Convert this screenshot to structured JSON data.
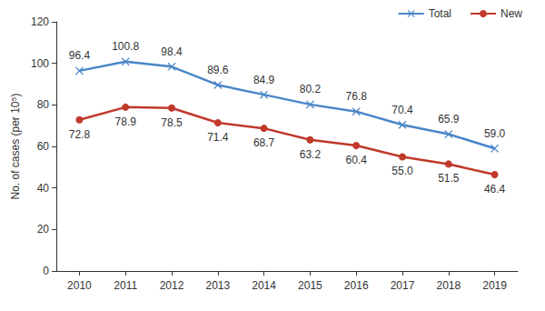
{
  "chart_data": {
    "type": "line",
    "y_label": "No. of cases (per 10⁵)",
    "categories": [
      "2010",
      "2011",
      "2012",
      "2013",
      "2014",
      "2015",
      "2016",
      "2017",
      "2018",
      "2019"
    ],
    "series": [
      {
        "name": "Total",
        "color": "#4a86c8",
        "marker": "x",
        "values": [
          96.4,
          100.8,
          98.4,
          89.6,
          84.9,
          80.2,
          76.8,
          70.4,
          65.9,
          59.0
        ],
        "value_labels": [
          "96.4",
          "100.8",
          "98.4",
          "89.6",
          "84.9",
          "80.2",
          "76.8",
          "70.4",
          "65.9",
          "59.0"
        ]
      },
      {
        "name": "New",
        "color": "#c0392b",
        "marker": "o",
        "values": [
          72.8,
          78.9,
          78.5,
          71.4,
          68.7,
          63.2,
          60.4,
          55.0,
          51.5,
          46.4
        ],
        "value_labels": [
          "72.8",
          "78.9",
          "78.5",
          "71.4",
          "68.7",
          "63.2",
          "60.4",
          "55.0",
          "51.5",
          "46.4"
        ]
      }
    ],
    "ylim": [
      0,
      120
    ],
    "yticks": [
      0,
      20,
      40,
      60,
      80,
      100,
      120
    ],
    "grid": false,
    "legend": "upper right",
    "data_labels": true
  }
}
